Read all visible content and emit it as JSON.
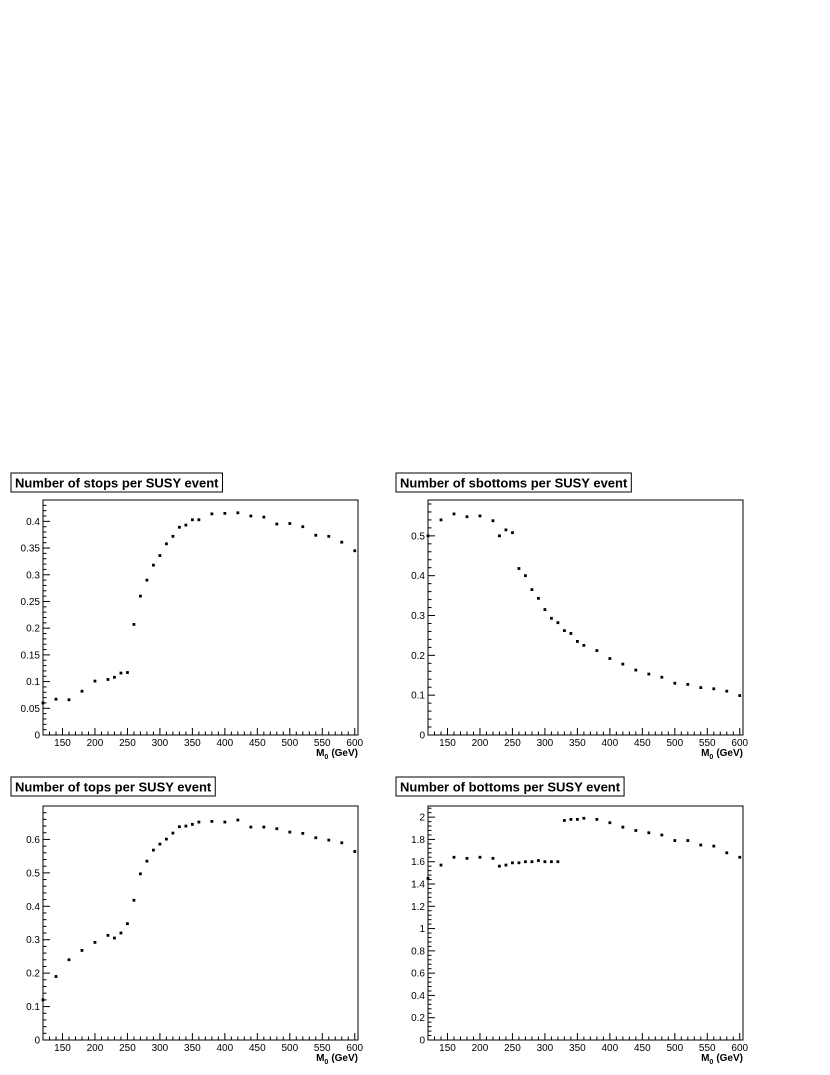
{
  "chart_data": [
    {
      "type": "scatter",
      "title": "Number of stops per SUSY event",
      "xlabel": "M",
      "xlabel_sub": "0",
      "xlabel_unit": "(GeV)",
      "xlim": [
        120,
        605
      ],
      "ylim": [
        0,
        0.44
      ],
      "xticks": [
        150,
        200,
        250,
        300,
        350,
        400,
        450,
        500,
        550,
        600
      ],
      "yticks": [
        0,
        0.05,
        0.1,
        0.15,
        0.2,
        0.25,
        0.3,
        0.35,
        0.4
      ],
      "x": [
        120,
        140,
        160,
        180,
        200,
        220,
        230,
        240,
        250,
        260,
        270,
        280,
        290,
        300,
        310,
        320,
        330,
        340,
        350,
        360,
        380,
        400,
        420,
        440,
        460,
        480,
        500,
        520,
        540,
        560,
        580,
        600
      ],
      "y": [
        0.06,
        0.067,
        0.066,
        0.082,
        0.101,
        0.104,
        0.108,
        0.116,
        0.117,
        0.207,
        0.26,
        0.29,
        0.318,
        0.336,
        0.358,
        0.372,
        0.389,
        0.393,
        0.403,
        0.403,
        0.414,
        0.415,
        0.416,
        0.41,
        0.408,
        0.395,
        0.396,
        0.39,
        0.374,
        0.372,
        0.361,
        0.345
      ]
    },
    {
      "type": "scatter",
      "title": "Number of sbottoms per SUSY event",
      "xlabel": "M",
      "xlabel_sub": "0",
      "xlabel_unit": "(GeV)",
      "xlim": [
        120,
        605
      ],
      "ylim": [
        0,
        0.59
      ],
      "xticks": [
        150,
        200,
        250,
        300,
        350,
        400,
        450,
        500,
        550,
        600
      ],
      "yticks": [
        0,
        0.1,
        0.2,
        0.3,
        0.4,
        0.5
      ],
      "x": [
        120,
        140,
        160,
        180,
        200,
        220,
        230,
        240,
        250,
        260,
        270,
        280,
        290,
        300,
        310,
        320,
        330,
        340,
        350,
        360,
        380,
        400,
        420,
        440,
        460,
        480,
        500,
        520,
        540,
        560,
        580,
        600
      ],
      "y": [
        0.5,
        0.54,
        0.555,
        0.548,
        0.55,
        0.538,
        0.5,
        0.515,
        0.508,
        0.418,
        0.4,
        0.365,
        0.343,
        0.315,
        0.293,
        0.282,
        0.262,
        0.255,
        0.235,
        0.225,
        0.212,
        0.192,
        0.178,
        0.163,
        0.153,
        0.145,
        0.13,
        0.127,
        0.119,
        0.116,
        0.11,
        0.099
      ]
    },
    {
      "type": "scatter",
      "title": "Number of tops per SUSY event",
      "xlabel": "M",
      "xlabel_sub": "0",
      "xlabel_unit": "(GeV)",
      "xlim": [
        120,
        605
      ],
      "ylim": [
        0,
        0.7
      ],
      "xticks": [
        150,
        200,
        250,
        300,
        350,
        400,
        450,
        500,
        550,
        600
      ],
      "yticks": [
        0,
        0.1,
        0.2,
        0.3,
        0.4,
        0.5,
        0.6
      ],
      "x": [
        120,
        140,
        160,
        180,
        200,
        220,
        230,
        240,
        250,
        260,
        270,
        280,
        290,
        300,
        310,
        320,
        330,
        340,
        350,
        360,
        380,
        400,
        420,
        440,
        460,
        480,
        500,
        520,
        540,
        560,
        580,
        600
      ],
      "y": [
        0.12,
        0.19,
        0.24,
        0.268,
        0.292,
        0.313,
        0.305,
        0.32,
        0.348,
        0.418,
        0.497,
        0.535,
        0.568,
        0.586,
        0.601,
        0.619,
        0.638,
        0.64,
        0.645,
        0.652,
        0.654,
        0.652,
        0.658,
        0.637,
        0.637,
        0.632,
        0.622,
        0.618,
        0.605,
        0.598,
        0.59,
        0.564
      ]
    },
    {
      "type": "scatter",
      "title": "Number of bottoms per SUSY event",
      "xlabel": "M",
      "xlabel_sub": "0",
      "xlabel_unit": "(GeV)",
      "xlim": [
        120,
        605
      ],
      "ylim": [
        0,
        2.1
      ],
      "xticks": [
        150,
        200,
        250,
        300,
        350,
        400,
        450,
        500,
        550,
        600
      ],
      "yticks": [
        0,
        0.2,
        0.4,
        0.6,
        0.8,
        1,
        1.2,
        1.4,
        1.6,
        1.8,
        2
      ],
      "x": [
        120,
        140,
        160,
        180,
        200,
        220,
        230,
        240,
        250,
        260,
        270,
        280,
        290,
        300,
        310,
        320,
        330,
        340,
        350,
        360,
        380,
        400,
        420,
        440,
        460,
        480,
        500,
        520,
        540,
        560,
        580,
        600
      ],
      "y": [
        1.45,
        1.57,
        1.64,
        1.63,
        1.64,
        1.63,
        1.56,
        1.57,
        1.59,
        1.59,
        1.6,
        1.6,
        1.61,
        1.6,
        1.6,
        1.6,
        1.97,
        1.98,
        1.98,
        1.99,
        1.98,
        1.95,
        1.91,
        1.88,
        1.86,
        1.84,
        1.79,
        1.79,
        1.75,
        1.74,
        1.68,
        1.64
      ]
    }
  ]
}
